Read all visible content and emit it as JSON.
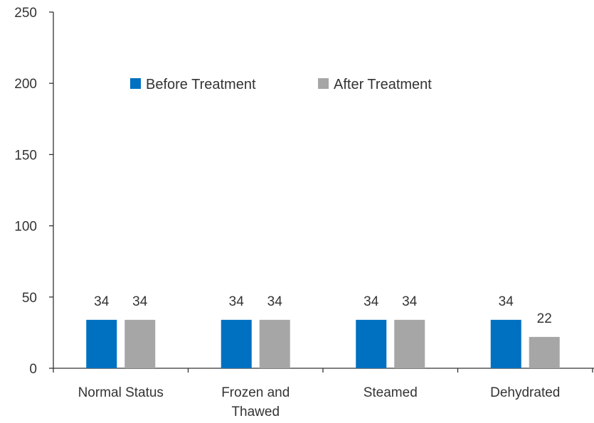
{
  "chart_data": {
    "type": "bar",
    "title": "",
    "xlabel": "",
    "ylabel": "",
    "ylim": [
      0,
      250
    ],
    "y_ticks": [
      0,
      50,
      100,
      150,
      200,
      250
    ],
    "categories": [
      "Normal Status",
      "Frozen and Thawed",
      "Steamed",
      "Dehydrated"
    ],
    "series": [
      {
        "name": "Before Treatment",
        "color": "#0070C0",
        "values": [
          34,
          34,
          34,
          34
        ]
      },
      {
        "name": "After Treatment",
        "color": "#A6A6A6",
        "values": [
          34,
          34,
          34,
          22
        ]
      }
    ],
    "grid": false,
    "legend_position": "top-center"
  }
}
